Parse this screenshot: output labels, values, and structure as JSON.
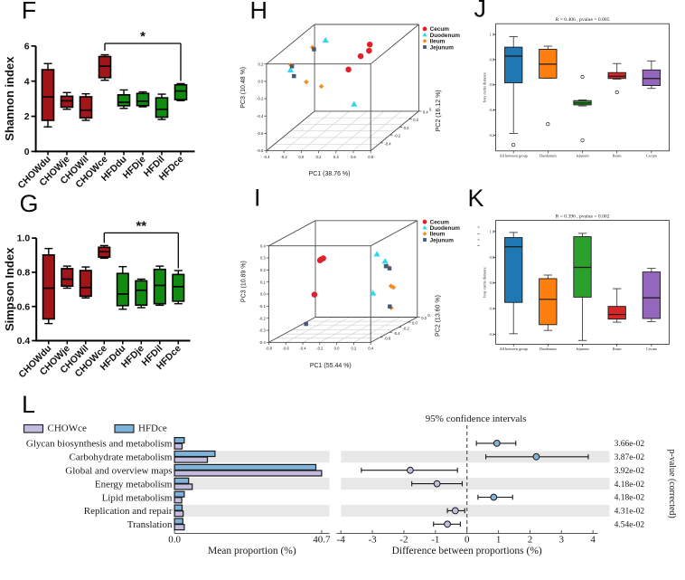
{
  "figure": {
    "background": "#ffffff",
    "panel_letters": {
      "F": "F",
      "G": "G",
      "H": "H",
      "I": "I",
      "J": "J",
      "K": "K",
      "L": "L"
    }
  },
  "chart_data": [
    {
      "panel": "F",
      "type": "box",
      "ylabel": "Shannon index",
      "ylim": [
        0,
        6
      ],
      "yticks": [
        "0",
        "2",
        "4",
        "6"
      ],
      "ytick_values": [
        0,
        2,
        4,
        6
      ],
      "categories": [
        "CHOWdu",
        "CHOWje",
        "CHOWil",
        "CHOWce",
        "HFDdu",
        "HFDje",
        "HFDil",
        "HFDce"
      ],
      "group_colors": {
        "CHOW": "#a21518",
        "HFD": "#128b12"
      },
      "boxes": [
        {
          "whislo": 1.4,
          "q1": 1.77,
          "med": 3.1,
          "q3": 4.65,
          "whishi": 5.0
        },
        {
          "whislo": 2.4,
          "q1": 2.52,
          "med": 2.88,
          "q3": 3.14,
          "whishi": 3.35
        },
        {
          "whislo": 1.77,
          "q1": 1.91,
          "med": 2.35,
          "q3": 3.11,
          "whishi": 3.28
        },
        {
          "whislo": 4.05,
          "q1": 4.2,
          "med": 4.85,
          "q3": 5.4,
          "whishi": 5.5
        },
        {
          "whislo": 2.45,
          "q1": 2.6,
          "med": 2.8,
          "q3": 3.22,
          "whishi": 3.5
        },
        {
          "whislo": 2.54,
          "q1": 2.61,
          "med": 2.86,
          "q3": 3.3,
          "whishi": 3.39
        },
        {
          "whislo": 1.82,
          "q1": 1.95,
          "med": 2.4,
          "q3": 3.05,
          "whishi": 3.26
        },
        {
          "whislo": 2.89,
          "q1": 2.95,
          "med": 3.44,
          "q3": 3.79,
          "whishi": 3.86
        }
      ],
      "significance": {
        "label": "*",
        "from": "CHOWce",
        "to": "HFDce"
      }
    },
    {
      "panel": "G",
      "type": "box",
      "ylabel": "Simpson Index",
      "ylim": [
        0.4,
        1.0
      ],
      "yticks": [
        "0.4",
        "0.6",
        "0.8",
        "1.0"
      ],
      "ytick_values": [
        0.4,
        0.6,
        0.8,
        1.0
      ],
      "categories": [
        "CHOWdu",
        "CHOWje",
        "CHOWil",
        "CHOWce",
        "HFDdu",
        "HFDje",
        "HFDil",
        "HFDce"
      ],
      "group_colors": {
        "CHOW": "#a21518",
        "HFD": "#128b12"
      },
      "boxes": [
        {
          "whislo": 0.5,
          "q1": 0.527,
          "med": 0.707,
          "q3": 0.901,
          "whishi": 0.939
        },
        {
          "whislo": 0.707,
          "q1": 0.719,
          "med": 0.76,
          "q3": 0.821,
          "whishi": 0.836
        },
        {
          "whislo": 0.65,
          "q1": 0.66,
          "med": 0.711,
          "q3": 0.81,
          "whishi": 0.831
        },
        {
          "whislo": 0.882,
          "q1": 0.889,
          "med": 0.92,
          "q3": 0.946,
          "whishi": 0.956
        },
        {
          "whislo": 0.584,
          "q1": 0.605,
          "med": 0.673,
          "q3": 0.793,
          "whishi": 0.833
        },
        {
          "whislo": 0.593,
          "q1": 0.608,
          "med": 0.695,
          "q3": 0.75,
          "whishi": 0.76
        },
        {
          "whislo": 0.607,
          "q1": 0.616,
          "med": 0.723,
          "q3": 0.817,
          "whishi": 0.836
        },
        {
          "whislo": 0.616,
          "q1": 0.631,
          "med": 0.716,
          "q3": 0.787,
          "whishi": 0.81
        }
      ],
      "significance": {
        "label": "**",
        "from": "CHOWce",
        "to": "HFDce"
      }
    },
    {
      "panel": "H",
      "type": "scatter3d",
      "xlabel": "PC1 (38.76 %)",
      "ylabel": "PC2 (16.12 %)",
      "zlabel": "PC3 (10.48 %)",
      "xticks": [
        "-0.4",
        "-0.2",
        "0.0",
        "0.2",
        "0.4",
        "0.6",
        "0.8"
      ],
      "zticks": [
        "0.2",
        "0.0",
        "-0.2",
        "-0.4",
        "-0.6",
        "-0.8"
      ],
      "yticks": [
        "-0.4",
        "-0.2",
        "0.0",
        "0.2",
        "0.4"
      ],
      "ytick_extra": "0.",
      "legend": [
        "Cecum",
        "Duodenum",
        "Ileum",
        "Jejunum"
      ],
      "series": [
        {
          "name": "Cecum",
          "marker": "circle",
          "color": "#e0202a",
          "points": [
            [
              409.2,
              49.2
            ],
            [
              408.4,
              56.1
            ],
            [
              399.1,
              62.1
            ],
            [
              385.6,
              76.8
            ]
          ]
        },
        {
          "name": "Duodenum",
          "marker": "triangle",
          "color": "#2fd8ec",
          "points": [
            [
              360.2,
              44.8
            ],
            [
              321.4,
              77.7
            ],
            [
              391.8,
              115.4
            ]
          ]
        },
        {
          "name": "Ileum",
          "marker": "diamond",
          "color": "#f68b1f",
          "points": [
            [
              345.7,
              52.4
            ],
            [
              321.7,
              71.9
            ],
            [
              338.9,
              90.6
            ],
            [
              355.6,
              95.5
            ]
          ]
        },
        {
          "name": "Jejunum",
          "marker": "square",
          "color": "#44597a",
          "points": [
            [
              347.5,
              54.5
            ],
            [
              323.1,
              73.3
            ],
            [
              325.3,
              84.1
            ]
          ]
        }
      ]
    },
    {
      "panel": "I",
      "type": "scatter3d",
      "xlabel": "PC1 (55.44 %)",
      "ylabel": "PC2 (13.60 %)",
      "zlabel": "PC3 (10.89 %)",
      "xticks": [
        "-0.8",
        "-0.6",
        "-0.4",
        "-0.2",
        "0.0",
        "0.2",
        "0.4"
      ],
      "zticks": [
        "0.4",
        "0.3",
        "0.2",
        "0.1",
        "0.0",
        "-0.1",
        "-0.2",
        "-0.3",
        "-0.4"
      ],
      "yticks": [
        "-0.6",
        "-0.4",
        "-0.2",
        "0.0",
        "0.2"
      ],
      "ytick_extra": "0.",
      "legend": [
        "Cecum",
        "Duodenum",
        "Ileum",
        "Jejunum"
      ],
      "series": [
        {
          "name": "Cecum",
          "marker": "circle",
          "color": "#e0202a",
          "points": [
            [
              354.1,
              287.7
            ],
            [
              355.3,
              286.6
            ],
            [
              357.7,
              285.5
            ],
            [
              347.9,
              325.6
            ]
          ]
        },
        {
          "name": "Duodenum",
          "marker": "triangle",
          "color": "#2fd8ec",
          "points": [
            [
              417.1,
              281.1
            ],
            [
              426.1,
              289.0
            ],
            [
              412.8,
              324.3
            ]
          ]
        },
        {
          "name": "Ileum",
          "marker": "diamond",
          "color": "#f68b1f",
          "points": [
            [
              428.6,
              293.9
            ],
            [
              432.6,
              316.1
            ],
            [
              435.3,
              317.6
            ],
            [
              432.9,
              340.3
            ]
          ]
        },
        {
          "name": "Jejunum",
          "marker": "square",
          "color": "#44597a",
          "points": [
            [
              427.0,
              294.2
            ],
            [
              431.0,
              296.6
            ],
            [
              431.3,
              338.7
            ],
            [
              338.7,
              358.0
            ]
          ]
        }
      ]
    },
    {
      "panel": "J",
      "type": "box",
      "title": "R = 0.406 , pvalue = 0.005",
      "ylabel": "bray curtis distance",
      "ylim": [
        0.08,
        1.05
      ],
      "yticks": [
        "0.2",
        "0.4",
        "0.6",
        "0.8",
        "1.0"
      ],
      "ytick_values": [
        0.2,
        0.4,
        0.6,
        0.8,
        1.0
      ],
      "categories": [
        "All between group",
        "Duodenum",
        "Jejunum",
        "Ileum",
        "Cecum"
      ],
      "colors": [
        "#1f77b4",
        "#ff7f0e",
        "#2ca02c",
        "#d62728",
        "#9467bd"
      ],
      "boxes": [
        {
          "whislo": 0.213,
          "q1": 0.616,
          "med": 0.828,
          "q3": 0.899,
          "whishi": 0.983,
          "fliers": [
            0.122
          ]
        },
        {
          "whislo": 0.653,
          "q1": 0.653,
          "med": 0.764,
          "q3": 0.882,
          "whishi": 0.907,
          "fliers": [
            0.287
          ]
        },
        {
          "whislo": 0.432,
          "q1": 0.44,
          "med": 0.455,
          "q3": 0.474,
          "whishi": 0.48,
          "fliers": [
            0.663,
            0.158
          ]
        },
        {
          "whislo": 0.645,
          "q1": 0.65,
          "med": 0.668,
          "q3": 0.697,
          "whishi": 0.769,
          "fliers": [
            0.54
          ]
        },
        {
          "whislo": 0.571,
          "q1": 0.594,
          "med": 0.65,
          "q3": 0.718,
          "whishi": 0.79,
          "fliers": []
        }
      ]
    },
    {
      "panel": "K",
      "type": "box",
      "title": "R = 0.396 , pvalue = 0.002",
      "ylabel": "bray curtis distance",
      "ylim": [
        0.08,
        1.05
      ],
      "yticks": [
        "0.2",
        "0.4",
        "0.6",
        "0.8",
        "1.0"
      ],
      "ytick_values": [
        0.2,
        0.4,
        0.6,
        0.8,
        1.0
      ],
      "categories": [
        "All between group",
        "Duodenum",
        "Jejunum",
        "Ileum",
        "Cecum"
      ],
      "colors": [
        "#1f77b4",
        "#ff7f0e",
        "#2ca02c",
        "#d62728",
        "#9467bd"
      ],
      "boxes": [
        {
          "whislo": 0.204,
          "q1": 0.448,
          "med": 0.881,
          "q3": 0.953,
          "whishi": 0.993,
          "fliers": []
        },
        {
          "whislo": 0.23,
          "q1": 0.275,
          "med": 0.472,
          "q3": 0.633,
          "whishi": 0.661,
          "fliers": []
        },
        {
          "whislo": 0.152,
          "q1": 0.489,
          "med": 0.721,
          "q3": 0.96,
          "whishi": 0.986,
          "fliers": []
        },
        {
          "whislo": 0.294,
          "q1": 0.318,
          "med": 0.354,
          "q3": 0.417,
          "whishi": 0.555,
          "fliers": []
        },
        {
          "whislo": 0.299,
          "q1": 0.323,
          "med": 0.484,
          "q3": 0.685,
          "whishi": 0.713,
          "fliers": []
        }
      ]
    },
    {
      "panel": "L",
      "type": "stamp",
      "legend": [
        {
          "name": "CHOWce",
          "color": "#c4bcdf"
        },
        {
          "name": "HFDce",
          "color": "#7fb4da"
        }
      ],
      "features": [
        "Glycan biosynthesis and metabolism",
        "Carbohydrate metabolism",
        "Global and overview maps",
        "Energy metabolism",
        "Lipid metabolism",
        "Replication and repair",
        "Translation"
      ],
      "series": [
        {
          "name": "HFDce",
          "values": [
            2.7,
            11.2,
            39.1,
            3.9,
            2.7,
            2.1,
            2.3
          ]
        },
        {
          "name": "CHOWce",
          "values": [
            2.1,
            9.1,
            40.7,
            4.9,
            2.0,
            2.4,
            2.7
          ]
        }
      ],
      "left_xlabel": "Mean proportion (%)",
      "left_xticks": [
        "0.0",
        "40.7"
      ],
      "left_xmax": 40.7,
      "right_title": "95% confidence intervals",
      "right_xlabel": "Difference between proportions (%)",
      "right_xticks": [
        "-4",
        "-3",
        "-2",
        "-1",
        "0",
        "1",
        "2",
        "3",
        "4"
      ],
      "right_xtick_values": [
        -4,
        -3,
        -2,
        -1,
        0,
        1,
        2,
        3,
        4
      ],
      "right_ylabel": "p-value (corrected)",
      "diff": {
        "values": [
          0.95,
          2.2,
          -1.8,
          -0.95,
          0.85,
          -0.37,
          -0.62
        ],
        "ci_lo": [
          0.3,
          0.6,
          -3.35,
          -1.75,
          0.35,
          -0.62,
          -1.06
        ],
        "ci_hi": [
          1.55,
          3.85,
          -0.3,
          -0.15,
          1.45,
          -0.07,
          -0.21
        ],
        "dot_colors": [
          "#7fb4da",
          "#7fb4da",
          "#c4bcdf",
          "#c4bcdf",
          "#7fb4da",
          "#c4bcdf",
          "#c4bcdf"
        ]
      },
      "pvalues": [
        "3.66e-02",
        "3.87e-02",
        "3.92e-02",
        "4.18e-02",
        "4.18e-02",
        "4.31e-02",
        "4.54e-02"
      ]
    }
  ]
}
